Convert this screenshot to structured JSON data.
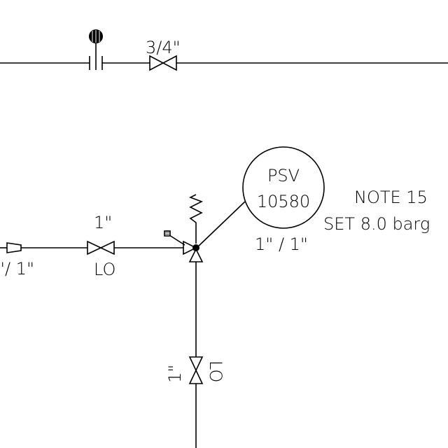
{
  "diagram": {
    "top_line": {
      "size_label": "3/4\""
    },
    "psv": {
      "tag_prefix": "PSV",
      "tag_number": "10580",
      "connection_sizes": "1\" / 1\"",
      "note": "NOTE 15",
      "set_pressure": "SET 8.0 barg"
    },
    "inlet_line": {
      "reducer_label": "\"/ 1\"",
      "valve_size": "1\"",
      "valve_status": "LO"
    },
    "vertical_line": {
      "valve_size": "1\"",
      "valve_status": "LO"
    }
  }
}
